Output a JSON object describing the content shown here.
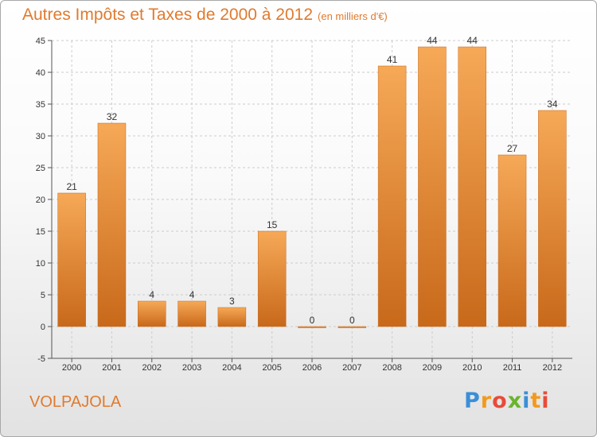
{
  "header": {
    "title": "Autres Impôts et Taxes de 2000 à 2012",
    "subtitle": "(en milliers d'€)"
  },
  "footer": {
    "city": "VOLPAJOLA",
    "logo_letters": [
      "P",
      "r",
      "o",
      "x",
      "i",
      "t",
      "i"
    ],
    "logo_colors": [
      "#3a8fd6",
      "#f29a1f",
      "#e84b3a",
      "#6ab42d",
      "#3a8fd6",
      "#f29a1f",
      "#e84b3a"
    ]
  },
  "colors": {
    "bar": "#f0912d",
    "bar_light": "#f6a957",
    "bar_dark": "#c8691a",
    "title": "#e07a2e"
  },
  "chart_data": {
    "type": "bar",
    "title": "Autres Impôts et Taxes de 2000 à 2012",
    "subtitle": "(en milliers d'€)",
    "categories": [
      "2000",
      "2001",
      "2002",
      "2003",
      "2004",
      "2005",
      "2006",
      "2007",
      "2008",
      "2009",
      "2010",
      "2011",
      "2012"
    ],
    "values": [
      21,
      32,
      4,
      4,
      3,
      15,
      0,
      0,
      41,
      44,
      44,
      27,
      34
    ],
    "ylim": [
      -5,
      45
    ],
    "yticks": [
      -5,
      0,
      5,
      10,
      15,
      20,
      25,
      30,
      35,
      40,
      45
    ],
    "grid": true,
    "xlabel": "",
    "ylabel": ""
  }
}
